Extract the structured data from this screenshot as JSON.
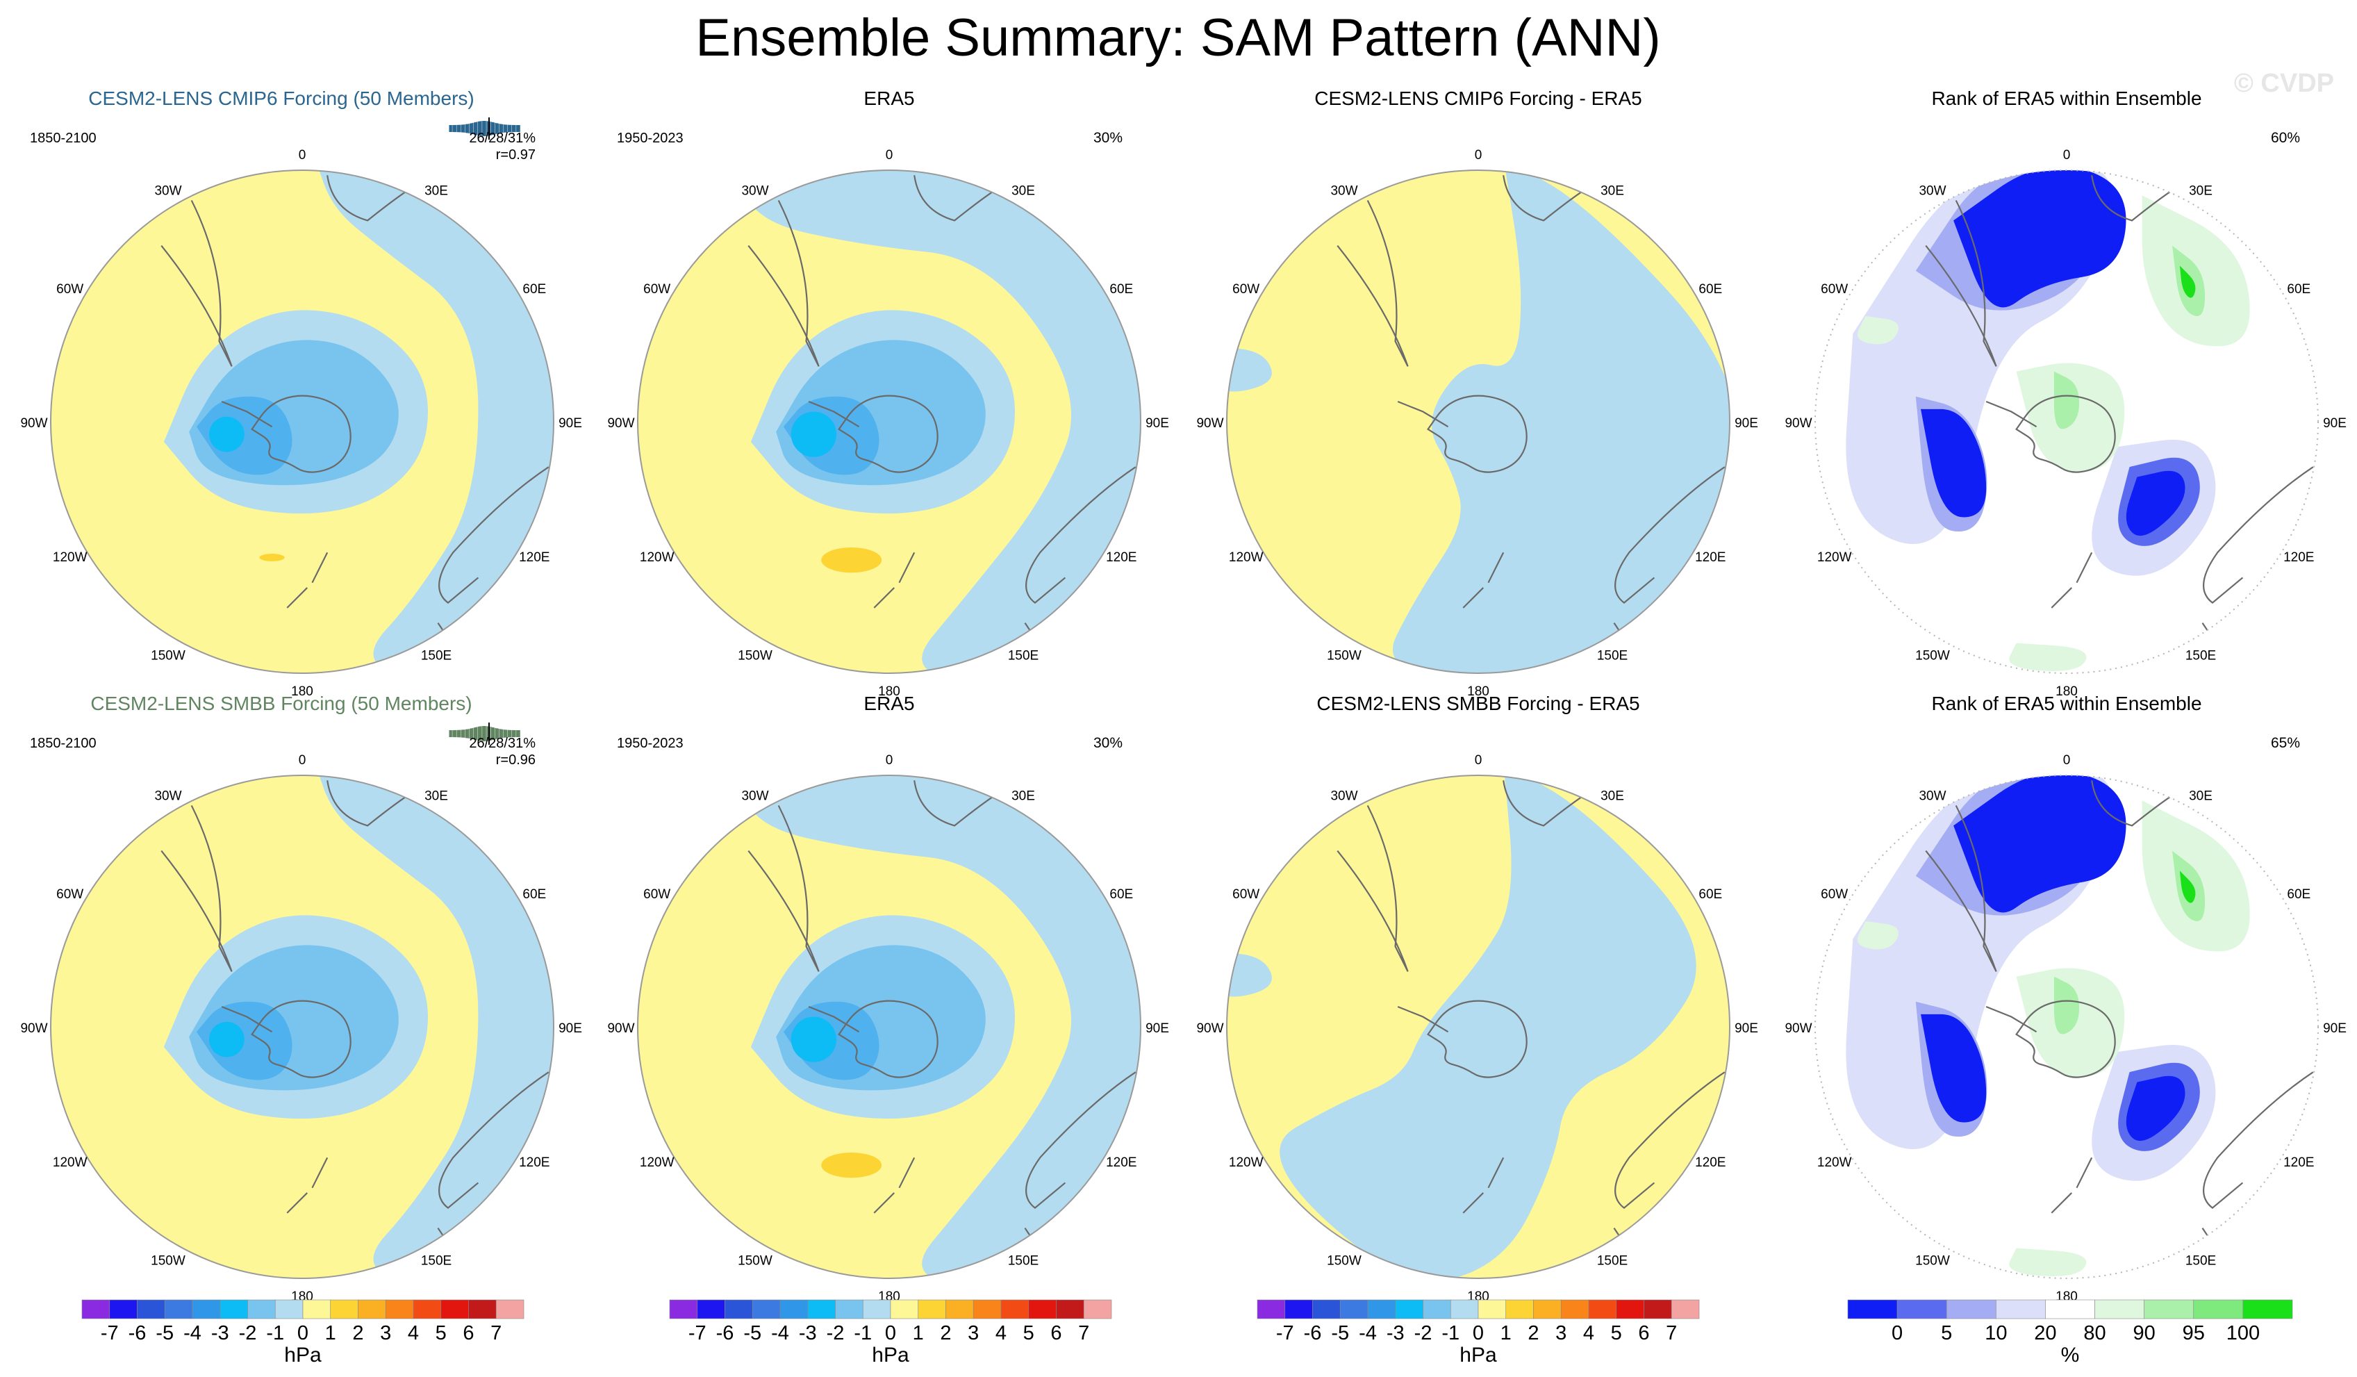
{
  "title": "Ensemble Summary: SAM Pattern (ANN)",
  "watermark": "© CVDP",
  "colors": {
    "ocean_neg1": "#b4dcf0",
    "zero_pos": "#fdf797",
    "neg2": "#79c4ef",
    "neg3": "#4fb1ee",
    "neg4": "#0dbbf5",
    "pos1": "#fcd434",
    "title_cmip6": "#2a6690",
    "title_smbb": "#608560",
    "coast": "#6a6a6a"
  },
  "lon_labels": [
    "0",
    "30E",
    "60E",
    "90E",
    "120E",
    "150E",
    "180",
    "150W",
    "120W",
    "90W",
    "60W",
    "30W"
  ],
  "rows": [
    {
      "panels": [
        {
          "kind": "ens",
          "title": "CESM2-LENS CMIP6 Forcing (50 Members)",
          "period": "1850-2100",
          "stats": "26/28/31%",
          "corr": "r=0.97",
          "title_color": "title_cmip6"
        },
        {
          "kind": "obs",
          "title": "ERA5",
          "period": "1950-2023",
          "pct": "30%"
        },
        {
          "kind": "diff",
          "title": "CESM2-LENS CMIP6 Forcing - ERA5"
        },
        {
          "kind": "rank",
          "title": "Rank of ERA5 within Ensemble",
          "pct": "60%"
        }
      ]
    },
    {
      "panels": [
        {
          "kind": "ens",
          "title": "CESM2-LENS SMBB Forcing (50 Members)",
          "period": "1850-2100",
          "stats": "26/28/31%",
          "corr": "r=0.96",
          "title_color": "title_smbb"
        },
        {
          "kind": "obs",
          "title": "ERA5",
          "period": "1950-2023",
          "pct": "30%"
        },
        {
          "kind": "diff",
          "title": "CESM2-LENS SMBB Forcing - ERA5"
        },
        {
          "kind": "rank",
          "title": "Rank of ERA5 within Ensemble",
          "pct": "65%"
        }
      ]
    }
  ],
  "chart_data": [
    {
      "type": "colorbar",
      "name": "SLP anomaly colorbar",
      "unit": "hPa",
      "tick_labels": [
        "-7",
        "-6",
        "-5",
        "-4",
        "-3",
        "-2",
        "-1",
        "0",
        "1",
        "2",
        "3",
        "4",
        "5",
        "6",
        "7"
      ],
      "bin_colors": [
        "#8a2be2",
        "#1d16f0",
        "#2a55d8",
        "#3c7ae2",
        "#2f96e8",
        "#0dbbf5",
        "#79c4ef",
        "#b4dcf0",
        "#fdf797",
        "#fcd434",
        "#fbb023",
        "#f8841a",
        "#f24b14",
        "#e3160f",
        "#c21a1a",
        "#f4a3a3"
      ]
    },
    {
      "type": "colorbar",
      "name": "rank colorbar",
      "unit": "%",
      "tick_labels": [
        "0",
        "5",
        "10",
        "20",
        "80",
        "90",
        "95",
        "100"
      ],
      "bin_colors": [
        "#0f1ef5",
        "#5a6bf0",
        "#a4acf4",
        "#dcdff9",
        "#ffffff",
        "#dff7df",
        "#aaf0aa",
        "#7eea7e",
        "#1ae01a"
      ]
    }
  ]
}
